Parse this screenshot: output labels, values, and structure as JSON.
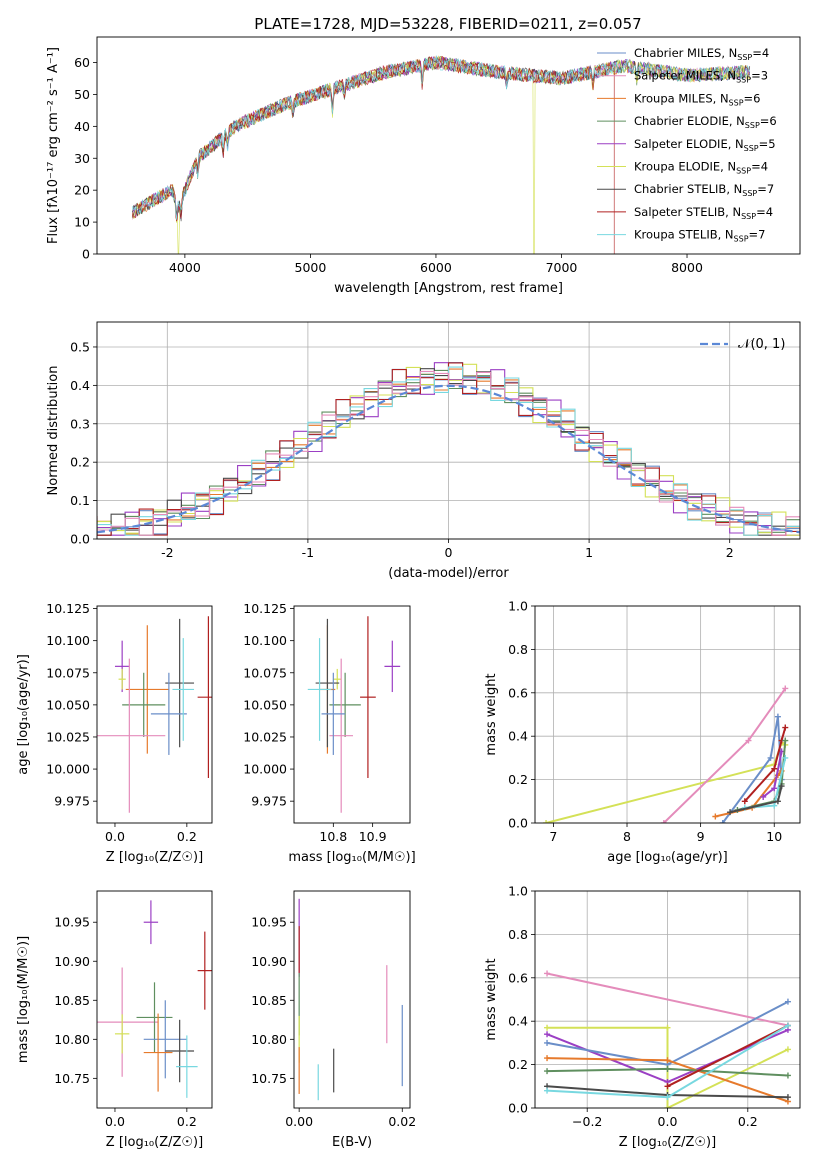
{
  "figure": {
    "title": "PLATE=1728, MJD=53228, FIBERID=0211, z=0.057"
  },
  "palette": [
    "#6a8ec8",
    "#e67a2c",
    "#5f8f5f",
    "#9b3fc4",
    "#d4e157",
    "#4a4a4a",
    "#b02020",
    "#78d8e0",
    "#e48cbb"
  ],
  "chart_data": [
    {
      "id": "spectrum",
      "type": "line",
      "xlabel": "wavelength [Angstrom, rest frame]",
      "ylabel": "Flux [f_λ 10^-17 erg cm^-2 s^-1 A^-1]",
      "xlim": [
        3300,
        8900
      ],
      "ylim": [
        0,
        68
      ],
      "xticks": [
        4000,
        5000,
        6000,
        7000,
        8000
      ],
      "yticks": [
        0,
        10,
        20,
        30,
        40,
        50,
        60
      ],
      "legend_position": "upper right",
      "continuum_anchors": {
        "x": [
          3580,
          3900,
          3950,
          4100,
          4400,
          4800,
          5200,
          5600,
          6000,
          6500,
          7000,
          7500,
          8000,
          8500
        ],
        "y": [
          13,
          20,
          15,
          30,
          40,
          47,
          52,
          57,
          60,
          57,
          55,
          59,
          56,
          57
        ]
      },
      "x_range_data": [
        3580,
        8500
      ],
      "series": [
        {
          "name": "Chabrier MILES, N_SSP=4",
          "color": "#6a8ec8"
        },
        {
          "name": "Salpeter MILES, N_SSP=3",
          "color": "#e48cbb"
        },
        {
          "name": "Kroupa MILES, N_SSP=6",
          "color": "#e67a2c"
        },
        {
          "name": "Chabrier ELODIE, N_SSP=6",
          "color": "#5f8f5f"
        },
        {
          "name": "Salpeter ELODIE, N_SSP=5",
          "color": "#9b3fc4"
        },
        {
          "name": "Kroupa ELODIE, N_SSP=4",
          "color": "#d4e157"
        },
        {
          "name": "Chabrier STELIB, N_SSP=7",
          "color": "#4a4a4a"
        },
        {
          "name": "Salpeter STELIB, N_SSP=4",
          "color": "#b02020"
        },
        {
          "name": "Kroupa STELIB, N_SSP=7",
          "color": "#78d8e0"
        }
      ]
    },
    {
      "id": "residuals",
      "type": "histogram",
      "xlabel": "(data-model)/error",
      "ylabel": "Normed distribution",
      "xlim": [
        -2.5,
        2.5
      ],
      "ylim": [
        0,
        0.565
      ],
      "xticks": [
        -2,
        -1,
        0,
        1,
        2
      ],
      "yticks": [
        0.0,
        0.1,
        0.2,
        0.3,
        0.4,
        0.5
      ],
      "bin_width": 0.1,
      "legend": "𝒩(0, 1)",
      "gaussian_color": "#5b88d6",
      "grid": true
    },
    {
      "id": "age_vs_Z",
      "type": "errorbar",
      "xlabel": "Z [log10(Z/Z⊙)]",
      "ylabel": "age  [log10(age/yr)]",
      "xlim": [
        -0.05,
        0.27
      ],
      "ylim": [
        9.958,
        10.127
      ],
      "xticks": [
        0.0,
        0.2
      ],
      "yticks": [
        9.975,
        10.0,
        10.025,
        10.05,
        10.075,
        10.1,
        10.125
      ],
      "points": [
        {
          "x": 0.02,
          "xerr": 0.02,
          "y": 10.08,
          "yerr": 0.02,
          "color": "#9b3fc4"
        },
        {
          "x": 0.02,
          "xerr": 0.01,
          "y": 10.07,
          "yerr": 0.008,
          "color": "#d4e157"
        },
        {
          "x": 0.09,
          "xerr": 0.06,
          "y": 10.062,
          "yerr": 0.05,
          "color": "#e67a2c"
        },
        {
          "x": 0.08,
          "xerr": 0.06,
          "y": 10.05,
          "yerr": 0.025,
          "color": "#5f8f5f"
        },
        {
          "x": 0.04,
          "xerr": 0.1,
          "y": 10.026,
          "yerr": 0.06,
          "color": "#e48cbb"
        },
        {
          "x": 0.18,
          "xerr": 0.04,
          "y": 10.067,
          "yerr": 0.05,
          "color": "#4a4a4a"
        },
        {
          "x": 0.26,
          "xerr": 0.03,
          "y": 10.056,
          "yerr": 0.063,
          "color": "#b02020"
        },
        {
          "x": 0.15,
          "xerr": 0.05,
          "y": 10.043,
          "yerr": 0.032,
          "color": "#6a8ec8"
        },
        {
          "x": 0.19,
          "xerr": 0.03,
          "y": 10.062,
          "yerr": 0.04,
          "color": "#78d8e0"
        }
      ]
    },
    {
      "id": "age_vs_mass",
      "type": "errorbar",
      "xlabel": "mass [log10(M/M⊙)]",
      "ylabel": "",
      "xlim": [
        10.7,
        10.995
      ],
      "ylim": [
        9.958,
        10.127
      ],
      "xticks": [
        10.8,
        10.9
      ],
      "xticklabels": [
        "10.8",
        "10.9"
      ],
      "yticks": [
        9.975,
        10.0,
        10.025,
        10.05,
        10.075,
        10.1,
        10.125
      ],
      "points": [
        {
          "x": 10.95,
          "xerr": 0.02,
          "y": 10.08,
          "yerr": 0.02,
          "color": "#9b3fc4"
        },
        {
          "x": 10.81,
          "xerr": 0.01,
          "y": 10.07,
          "yerr": 0.008,
          "color": "#d4e157"
        },
        {
          "x": 10.785,
          "xerr": 0.02,
          "y": 10.062,
          "yerr": 0.05,
          "color": "#e67a2c"
        },
        {
          "x": 10.83,
          "xerr": 0.04,
          "y": 10.05,
          "yerr": 0.025,
          "color": "#5f8f5f"
        },
        {
          "x": 10.82,
          "xerr": 0.03,
          "y": 10.026,
          "yerr": 0.06,
          "color": "#e48cbb"
        },
        {
          "x": 10.785,
          "xerr": 0.03,
          "y": 10.067,
          "yerr": 0.05,
          "color": "#4a4a4a"
        },
        {
          "x": 10.888,
          "xerr": 0.02,
          "y": 10.056,
          "yerr": 0.063,
          "color": "#b02020"
        },
        {
          "x": 10.8,
          "xerr": 0.03,
          "y": 10.043,
          "yerr": 0.032,
          "color": "#6a8ec8"
        },
        {
          "x": 10.765,
          "xerr": 0.03,
          "y": 10.062,
          "yerr": 0.04,
          "color": "#78d8e0"
        }
      ]
    },
    {
      "id": "weight_vs_age",
      "type": "line",
      "xlabel": "age  [log10(age/yr)]",
      "ylabel": "mass weight",
      "xlim": [
        6.75,
        10.35
      ],
      "ylim": [
        0,
        1.0
      ],
      "xticks": [
        7,
        8,
        9,
        10
      ],
      "yticks": [
        0.0,
        0.2,
        0.4,
        0.6,
        0.8,
        1.0
      ],
      "grid": true,
      "series": [
        {
          "color": "#d4e157",
          "x": [
            6.9,
            10.0,
            10.1,
            10.15
          ],
          "y": [
            0.0,
            0.27,
            0.37,
            0.36
          ]
        },
        {
          "color": "#e48cbb",
          "x": [
            8.5,
            9.65,
            10.15
          ],
          "y": [
            0.0,
            0.38,
            0.62
          ]
        },
        {
          "color": "#6a8ec8",
          "x": [
            9.3,
            9.95,
            10.05,
            10.1
          ],
          "y": [
            0.0,
            0.3,
            0.49,
            0.2
          ]
        },
        {
          "color": "#e67a2c",
          "x": [
            9.2,
            9.7,
            10.05,
            10.1
          ],
          "y": [
            0.03,
            0.07,
            0.22,
            0.24
          ]
        },
        {
          "color": "#9b3fc4",
          "x": [
            9.85,
            10.0,
            10.1
          ],
          "y": [
            0.12,
            0.16,
            0.33
          ]
        },
        {
          "color": "#b02020",
          "x": [
            9.6,
            10.0,
            10.1,
            10.15
          ],
          "y": [
            0.1,
            0.25,
            0.38,
            0.44
          ]
        },
        {
          "color": "#5f8f5f",
          "x": [
            9.5,
            10.0,
            10.1,
            10.15
          ],
          "y": [
            0.06,
            0.1,
            0.18,
            0.38
          ]
        },
        {
          "color": "#78d8e0",
          "x": [
            9.6,
            10.0,
            10.15
          ],
          "y": [
            0.07,
            0.08,
            0.3
          ]
        },
        {
          "color": "#4a4a4a",
          "x": [
            9.4,
            10.05,
            10.1
          ],
          "y": [
            0.05,
            0.1,
            0.17
          ]
        }
      ]
    },
    {
      "id": "mass_vs_Z",
      "type": "errorbar",
      "xlabel": "Z [log10(Z/Z⊙)]",
      "ylabel": "mass [log10(M/M⊙)]",
      "xlim": [
        -0.05,
        0.27
      ],
      "ylim": [
        10.712,
        10.99
      ],
      "xticks": [
        0.0,
        0.2
      ],
      "yticks": [
        10.75,
        10.8,
        10.85,
        10.9,
        10.95
      ],
      "points": [
        {
          "x": 0.1,
          "xerr": 0.02,
          "y": 10.95,
          "yerr": 0.028,
          "color": "#9b3fc4"
        },
        {
          "x": 0.25,
          "xerr": 0.02,
          "y": 10.888,
          "yerr": 0.05,
          "color": "#b02020"
        },
        {
          "x": 0.02,
          "xerr": 0.1,
          "y": 10.822,
          "yerr": 0.07,
          "color": "#e48cbb"
        },
        {
          "x": 0.11,
          "xerr": 0.05,
          "y": 10.828,
          "yerr": 0.045,
          "color": "#5f8f5f"
        },
        {
          "x": 0.02,
          "xerr": 0.02,
          "y": 10.807,
          "yerr": 0.025,
          "color": "#d4e157"
        },
        {
          "x": 0.14,
          "xerr": 0.06,
          "y": 10.8,
          "yerr": 0.05,
          "color": "#6a8ec8"
        },
        {
          "x": 0.12,
          "xerr": 0.04,
          "y": 10.783,
          "yerr": 0.05,
          "color": "#e67a2c"
        },
        {
          "x": 0.18,
          "xerr": 0.04,
          "y": 10.785,
          "yerr": 0.04,
          "color": "#4a4a4a"
        },
        {
          "x": 0.2,
          "xerr": 0.03,
          "y": 10.765,
          "yerr": 0.04,
          "color": "#78d8e0"
        }
      ]
    },
    {
      "id": "mass_vs_EBV",
      "type": "errorbar",
      "xlabel": "E(B-V)",
      "ylabel": "",
      "xlim": [
        -0.001,
        0.0215
      ],
      "ylim": [
        10.712,
        10.99
      ],
      "xticks": [
        0.0,
        0.02
      ],
      "xticklabels": [
        "0.00",
        "0.02"
      ],
      "yticks": [
        10.75,
        10.8,
        10.85,
        10.9,
        10.95
      ],
      "points": [
        {
          "x": 0.0,
          "y": 10.93,
          "yerr": 0.05,
          "color": "#9b3fc4"
        },
        {
          "x": 0.0,
          "y": 10.915,
          "yerr": 0.03,
          "color": "#b02020"
        },
        {
          "x": 0.0,
          "y": 10.845,
          "yerr": 0.04,
          "color": "#5f8f5f"
        },
        {
          "x": 0.0,
          "y": 10.8,
          "yerr": 0.03,
          "color": "#d4e157"
        },
        {
          "x": 0.0,
          "y": 10.76,
          "yerr": 0.03,
          "color": "#e67a2c"
        },
        {
          "x": 0.017,
          "y": 10.845,
          "yerr": 0.05,
          "color": "#e48cbb"
        },
        {
          "x": 0.02,
          "y": 10.792,
          "yerr": 0.052,
          "color": "#6a8ec8"
        },
        {
          "x": 0.0067,
          "y": 10.76,
          "yerr": 0.028,
          "color": "#4a4a4a"
        },
        {
          "x": 0.0037,
          "y": 10.745,
          "yerr": 0.023,
          "color": "#78d8e0"
        }
      ]
    },
    {
      "id": "weight_vs_Z",
      "type": "line",
      "xlabel": "Z [log10(Z/Z⊙)]",
      "ylabel": "mass weight",
      "xlim": [
        -0.33,
        0.33
      ],
      "ylim": [
        0,
        1.0
      ],
      "xticks": [
        -0.2,
        0.0,
        0.2
      ],
      "xticklabels": [
        "−0.2",
        "0.0",
        "0.2"
      ],
      "yticks": [
        0.0,
        0.2,
        0.4,
        0.6,
        0.8,
        1.0
      ],
      "grid": true,
      "series": [
        {
          "color": "#e48cbb",
          "x": [
            -0.3,
            0.3
          ],
          "y": [
            0.62,
            0.38
          ]
        },
        {
          "color": "#d4e157",
          "x": [
            -0.3,
            0.0,
            0.0,
            0.3
          ],
          "y": [
            0.37,
            0.37,
            0.0,
            0.27
          ]
        },
        {
          "color": "#9b3fc4",
          "x": [
            -0.3,
            0.0,
            0.3
          ],
          "y": [
            0.34,
            0.12,
            0.36
          ]
        },
        {
          "color": "#6a8ec8",
          "x": [
            -0.3,
            0.0,
            0.3
          ],
          "y": [
            0.3,
            0.2,
            0.49
          ]
        },
        {
          "color": "#e67a2c",
          "x": [
            -0.3,
            0.0,
            0.3
          ],
          "y": [
            0.23,
            0.22,
            0.03
          ]
        },
        {
          "color": "#5f8f5f",
          "x": [
            -0.3,
            0.0,
            0.3
          ],
          "y": [
            0.17,
            0.18,
            0.15
          ]
        },
        {
          "color": "#b02020",
          "x": [
            0.0,
            0.3
          ],
          "y": [
            0.1,
            0.38
          ]
        },
        {
          "color": "#4a4a4a",
          "x": [
            -0.3,
            0.0,
            0.3
          ],
          "y": [
            0.1,
            0.06,
            0.05
          ]
        },
        {
          "color": "#78d8e0",
          "x": [
            -0.3,
            0.0,
            0.3
          ],
          "y": [
            0.08,
            0.05,
            0.38
          ]
        }
      ]
    }
  ]
}
